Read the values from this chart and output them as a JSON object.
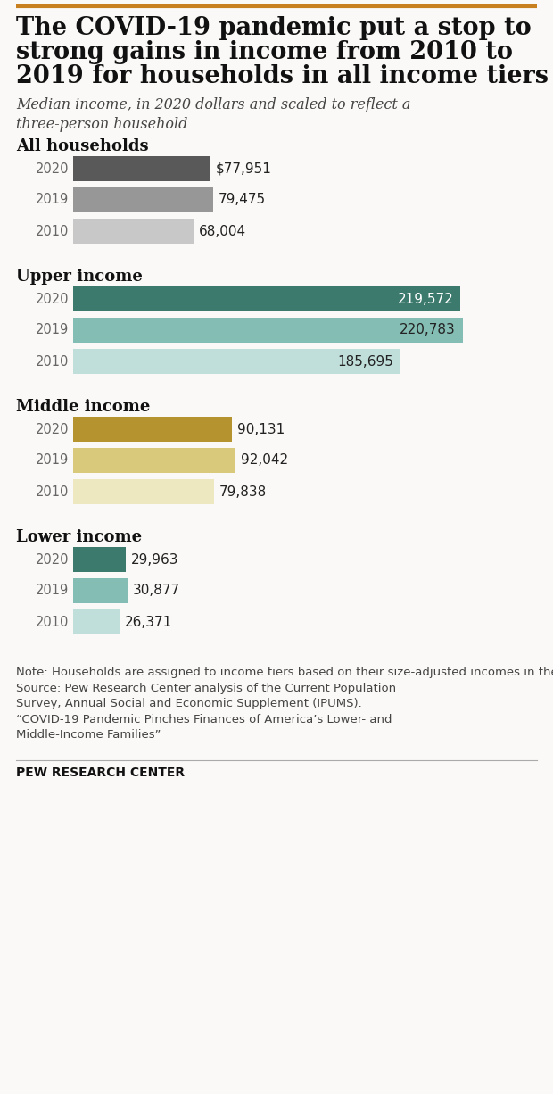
{
  "title_line1": "The COVID-19 pandemic put a stop to",
  "title_line2": "strong gains in income from 2010 to",
  "title_line3": "2019 for households in all income tiers",
  "subtitle": "Median income, in 2020 dollars and scaled to reflect a\nthree-person household",
  "sections": [
    {
      "label": "All households",
      "bars": [
        {
          "year": "2020",
          "value": 77951,
          "display": "$77,951",
          "color": "#595959"
        },
        {
          "year": "2019",
          "value": 79475,
          "display": "79,475",
          "color": "#979797"
        },
        {
          "year": "2010",
          "value": 68004,
          "display": "68,004",
          "color": "#c8c8c8"
        }
      ],
      "label_inside": false
    },
    {
      "label": "Upper income",
      "bars": [
        {
          "year": "2020",
          "value": 219572,
          "display": "219,572",
          "color": "#3d7a6e"
        },
        {
          "year": "2019",
          "value": 220783,
          "display": "220,783",
          "color": "#84bdb3"
        },
        {
          "year": "2010",
          "value": 185695,
          "display": "185,695",
          "color": "#c0deda"
        }
      ],
      "label_inside": true
    },
    {
      "label": "Middle income",
      "bars": [
        {
          "year": "2020",
          "value": 90131,
          "display": "90,131",
          "color": "#b5932e"
        },
        {
          "year": "2019",
          "value": 92042,
          "display": "92,042",
          "color": "#d9c97a"
        },
        {
          "year": "2010",
          "value": 79838,
          "display": "79,838",
          "color": "#ede8c0"
        }
      ],
      "label_inside": false
    },
    {
      "label": "Lower income",
      "bars": [
        {
          "year": "2020",
          "value": 29963,
          "display": "29,963",
          "color": "#3d7a6e"
        },
        {
          "year": "2019",
          "value": 30877,
          "display": "30,877",
          "color": "#84bdb3"
        },
        {
          "year": "2010",
          "value": 26371,
          "display": "26,371",
          "color": "#c0deda"
        }
      ],
      "label_inside": false
    }
  ],
  "max_val": 230000,
  "note_text": "Note: Households are assigned to income tiers based on their size-adjusted incomes in the calendar year prior to the survey year.\nSource: Pew Research Center analysis of the Current Population\nSurvey, Annual Social and Economic Supplement (IPUMS).\n“COVID-19 Pandemic Pinches Finances of America’s Lower- and\nMiddle-Income Families”",
  "footer": "PEW RESEARCH CENTER",
  "bg_color": "#faf9f7",
  "top_line_color": "#c8801e",
  "title_fontsize": 19.5,
  "subtitle_fontsize": 11.5,
  "section_label_fontsize": 13,
  "bar_label_fontsize": 11,
  "year_label_fontsize": 10.5,
  "note_fontsize": 9.5,
  "footer_fontsize": 10
}
